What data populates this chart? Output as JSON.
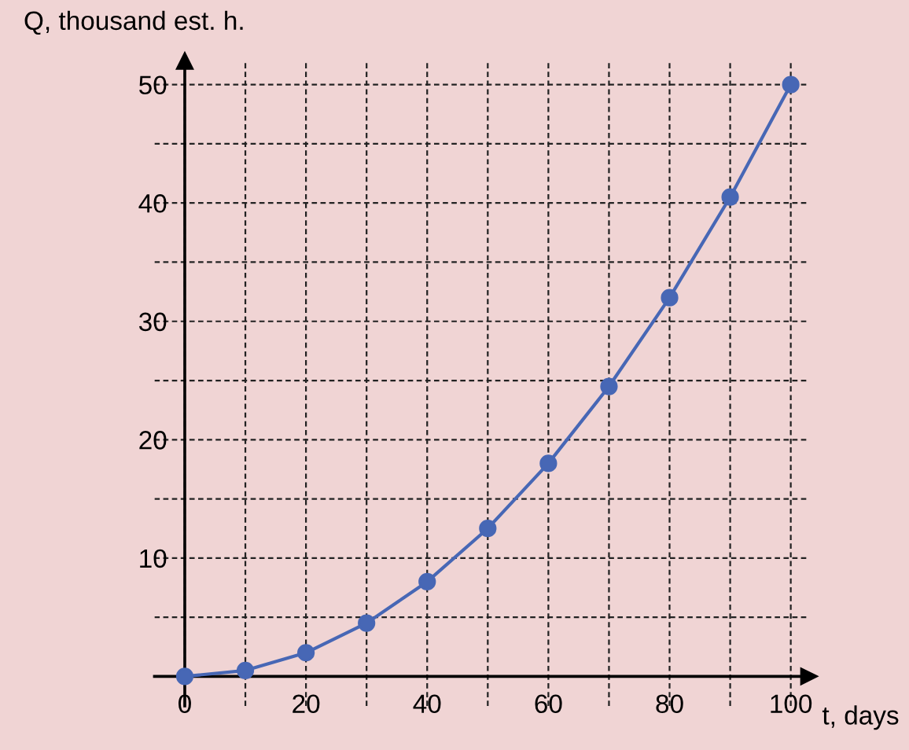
{
  "chart_data": {
    "type": "line",
    "xlabel": "t, days",
    "ylabel": "Q, thousand est. h.",
    "x": [
      0,
      10,
      20,
      30,
      40,
      50,
      60,
      70,
      80,
      90,
      100
    ],
    "series": [
      {
        "color": "#4767b5",
        "values": [
          0,
          0.5,
          2,
          4.5,
          8,
          12.5,
          18,
          24.5,
          32,
          40.5,
          50
        ]
      }
    ],
    "xlim": [
      -5,
      103
    ],
    "ylim": [
      -2.5,
      52
    ],
    "xticks": [
      0,
      {
        "value": 10,
        "label": null
      },
      20,
      {
        "value": 30,
        "label": null
      },
      40,
      {
        "value": 50,
        "label": null
      },
      60,
      {
        "value": 70,
        "label": null
      },
      80,
      {
        "value": 90,
        "label": null
      },
      100
    ],
    "yticks": [
      {
        "value": 5,
        "label": null
      },
      10,
      {
        "value": 15,
        "label": null
      },
      20,
      {
        "value": 25,
        "label": null
      },
      30,
      {
        "value": 35,
        "label": null
      },
      40,
      {
        "value": 45,
        "label": null
      },
      50
    ],
    "grid": true,
    "marker": "circle",
    "line_style": "solid",
    "legend": false
  }
}
